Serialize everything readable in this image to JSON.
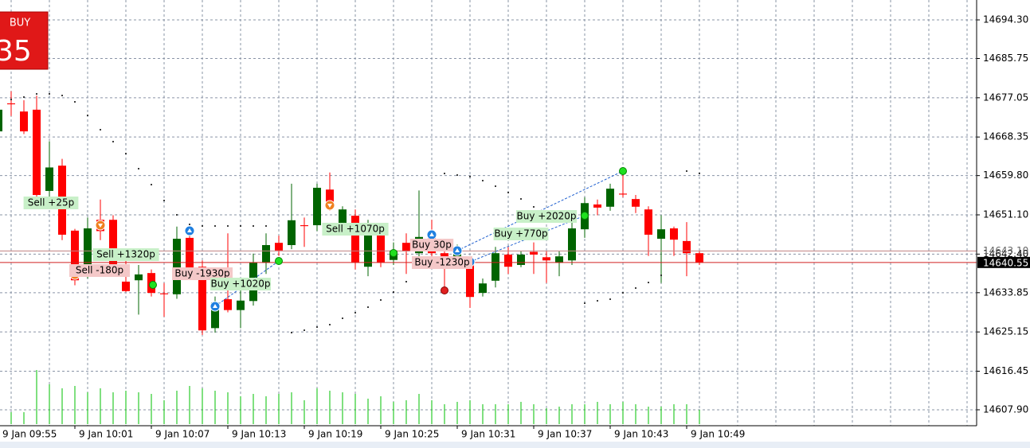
{
  "chart_data": {
    "type": "candlestick",
    "categories": [
      "9 Jan 09:55",
      null,
      null,
      null,
      null,
      null,
      "9 Jan 10:01",
      null,
      null,
      null,
      null,
      null,
      "9 Jan 10:07",
      null,
      null,
      null,
      null,
      null,
      "9 Jan 10:13",
      null,
      null,
      null,
      null,
      null,
      "9 Jan 10:19",
      null,
      null,
      null,
      null,
      null,
      "9 Jan 10:25",
      null,
      null,
      null,
      null,
      null,
      "9 Jan 10:31",
      null,
      null,
      null,
      null,
      null,
      "9 Jan 10:37",
      null,
      null,
      null,
      null,
      null,
      "9 Jan 10:43",
      null,
      null,
      null,
      null,
      null,
      "9 Jan 10:49",
      null
    ],
    "open": [
      14669.6,
      14675.8,
      14674.0,
      14674.4,
      14656.4,
      14662.0,
      14647.6,
      14639.6,
      14650.0,
      14650.0,
      14636.3,
      14636.6,
      14638.2,
      14633.7,
      14633.5,
      14646.0,
      14639.6,
      14626.0,
      14632.4,
      14630.0,
      14632.0,
      14640.5,
      14644.9,
      14644.4,
      14648.8,
      14648.8,
      14656.7,
      14649.2,
      14650.9,
      14639.6,
      14646.7,
      14641.1,
      14644.9,
      14642.6,
      14646.2,
      14642.6,
      14641.6,
      14640.0,
      14633.8,
      14636.5,
      14642.3,
      14640.0,
      14642.9,
      14641.7,
      14640.5,
      14641.0,
      14647.9,
      14653.4,
      14652.9,
      14655.8,
      14654.6,
      14652.3,
      14645.8,
      14648.1,
      14645.3,
      14642.6
    ],
    "high": [
      14675.0,
      14678.5,
      14676.5,
      14677.5,
      14667.4,
      14663.5,
      14648.0,
      14650.5,
      14654.5,
      14651.0,
      14641.0,
      14640.0,
      14639.0,
      14636.0,
      14648.5,
      14647.0,
      14641.0,
      14633.0,
      14647.0,
      14637.0,
      14642.5,
      14647.0,
      14646.5,
      14658.0,
      14650.5,
      14658.0,
      14660.5,
      14653.0,
      14652.3,
      14650.0,
      14648.0,
      14645.0,
      14647.0,
      14656.5,
      14650.0,
      14645.0,
      14644.5,
      14641.5,
      14637.0,
      14644.0,
      14644.0,
      14643.0,
      14645.0,
      14643.0,
      14643.0,
      14649.5,
      14655.0,
      14654.5,
      14658.0,
      14661.5,
      14655.5,
      14653.0,
      14651.0,
      14648.5,
      14649.5,
      14643.0
    ],
    "low": [
      14669.0,
      14673.0,
      14669.0,
      14654.0,
      14652.5,
      14645.5,
      14635.5,
      14637.0,
      14645.5,
      14637.5,
      14634.0,
      14629.0,
      14633.0,
      14628.5,
      14632.5,
      14638.0,
      14624.5,
      14625.0,
      14629.5,
      14626.0,
      14631.0,
      14638.0,
      14642.0,
      14643.5,
      14644.0,
      14647.5,
      14652.0,
      14648.0,
      14639.0,
      14637.5,
      14639.5,
      14640.0,
      14638.0,
      14641.0,
      14641.5,
      14634.0,
      14640.0,
      14630.5,
      14633.0,
      14635.0,
      14638.0,
      14639.5,
      14638.0,
      14636.0,
      14637.5,
      14640.0,
      14646.0,
      14651.0,
      14652.0,
      14655.0,
      14651.5,
      14642.0,
      14636.0,
      14642.0,
      14637.5,
      14640.0
    ],
    "close": [
      14674.4,
      14675.6,
      14669.6,
      14655.5,
      14661.6,
      14646.7,
      14636.6,
      14648.1,
      14647.5,
      14638.8,
      14634.2,
      14637.9,
      14633.8,
      14633.5,
      14645.8,
      14639.3,
      14625.5,
      14631.7,
      14630.0,
      14632.1,
      14640.5,
      14644.4,
      14643.2,
      14649.9,
      14648.6,
      14657.1,
      14653.7,
      14652.3,
      14640.5,
      14646.7,
      14640.5,
      14643.2,
      14643.0,
      14646.2,
      14642.6,
      14641.4,
      14643.0,
      14632.9,
      14635.9,
      14642.6,
      14639.6,
      14642.3,
      14642.3,
      14641.0,
      14641.9,
      14648.1,
      14653.7,
      14652.7,
      14656.9,
      14655.6,
      14652.9,
      14646.7,
      14647.9,
      14645.6,
      14642.6,
      14640.5
    ],
    "sar": [
      null,
      14676.67,
      14677.2,
      14677.9,
      14677.9,
      14677.55,
      14676.14,
      14673.14,
      14669.97,
      14667.32,
      14664.67,
      14661.32,
      14657.8,
      14654.27,
      14651.1,
      14648.98,
      14648.63,
      14648.63,
      14648.63,
      14648.63,
      14648.63,
      14648.63,
      null,
      14625.0,
      14625.53,
      14626.23,
      14626.76,
      14628.17,
      14629.41,
      14630.64,
      14632.23,
      14634.0,
      14636.28,
      null,
      null,
      14660.27,
      14659.91,
      14659.56,
      14658.68,
      14657.45,
      14656.03,
      14654.62,
      14652.86,
      null,
      null,
      null,
      14631.52,
      14632.05,
      14632.4,
      14633.81,
      14634.87,
      14636.11,
      14637.69,
      null,
      14660.8,
      14660.27
    ],
    "volume": [
      15,
      15,
      15,
      68,
      50,
      45,
      48,
      40,
      45,
      40,
      42,
      40,
      38,
      30,
      42,
      48,
      45,
      42,
      40,
      35,
      38,
      35,
      38,
      40,
      30,
      45,
      42,
      40,
      38,
      32,
      35,
      28,
      30,
      38,
      30,
      25,
      28,
      30,
      25,
      25,
      25,
      28,
      25,
      20,
      22,
      25,
      25,
      28,
      25,
      28,
      25,
      22,
      22,
      25,
      25,
      18
    ],
    "up_color": "#006400",
    "down_color": "#ff0000",
    "volume_color": "#00c000",
    "sar_color": "#000000",
    "ylim": [
      14698.71,
      14604.37
    ],
    "yticks": [
      {
        "value": 14694.3,
        "label": "14694.30"
      },
      {
        "value": 14685.75,
        "label": "14685.75"
      },
      {
        "value": 14677.05,
        "label": "14677.05"
      },
      {
        "value": 14668.35,
        "label": "14668.35"
      },
      {
        "value": 14659.8,
        "label": "14659.80"
      },
      {
        "value": 14651.1,
        "label": "14651.10"
      },
      {
        "value": 14642.4,
        "label": "14642.40"
      },
      {
        "value": 14633.85,
        "label": "14633.85"
      },
      {
        "value": 14625.15,
        "label": "14625.15"
      },
      {
        "value": 14616.45,
        "label": "14616.45"
      },
      {
        "value": 14607.9,
        "label": "14607.90"
      }
    ],
    "grid": true,
    "bid": {
      "value": 14640.55,
      "label": "14640.55"
    },
    "ask": {
      "value": 14643.1,
      "label": "14643.10"
    },
    "annotations": [
      {
        "text": "Sell +25p",
        "bg": "#c8f0c8"
      },
      {
        "text": "Sell -180p",
        "bg": "#f4c8c8"
      },
      {
        "text": "Sell +1320p",
        "bg": "#c8f0c8"
      },
      {
        "text": "Buy -1930p",
        "bg": "#f4c8c8"
      },
      {
        "text": "Buy +1020p",
        "bg": "#c8f0c8"
      },
      {
        "text": "Sell +1070p",
        "bg": "#c8f0c8"
      },
      {
        "text": "Buy 30p",
        "bg": "#f4c8c8"
      },
      {
        "text": "Buy -1230p",
        "bg": "#f4c8c8"
      },
      {
        "text": "Buy +770p",
        "bg": "#c8f0c8"
      },
      {
        "text": "Buy +2020p",
        "bg": "#c8f0c8"
      }
    ],
    "buy_panel": {
      "label": "BUY",
      "price": "35"
    }
  }
}
